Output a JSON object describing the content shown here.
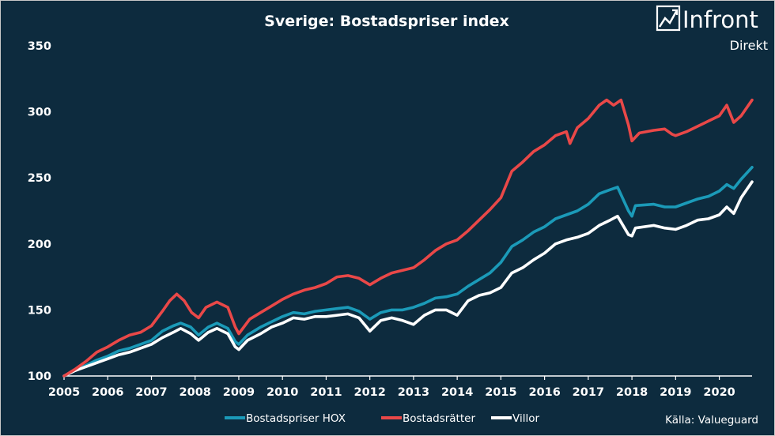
{
  "title": "Sverige: Bostadspriser index",
  "brand": {
    "name": "Infront",
    "sub": "Direkt",
    "icon": "chart-trend-icon"
  },
  "source": "Källa:  Valueguard",
  "colors": {
    "background": "#0d2b3e",
    "hox": "#1b9ab8",
    "br": "#e94848",
    "villor": "#ffffff"
  },
  "chart_data": {
    "type": "line",
    "title": "Sverige: Bostadspriser index",
    "xlabel": "",
    "ylabel": "",
    "xlim": [
      2005.0,
      2020.75
    ],
    "ylim": [
      100,
      350
    ],
    "x_ticks": [
      "2005",
      "2006",
      "2007",
      "2008",
      "2009",
      "2010",
      "2011",
      "2012",
      "2013",
      "2014",
      "2015",
      "2016",
      "2017",
      "2018",
      "2019",
      "2020"
    ],
    "y_ticks": [
      100,
      150,
      200,
      250,
      300,
      350
    ],
    "grid": false,
    "legend": "bottom",
    "series": [
      {
        "name": "Bostadspriser HOX",
        "color": "#1b9ab8",
        "points": [
          [
            2005.0,
            100
          ],
          [
            2005.25,
            104
          ],
          [
            2005.5,
            108
          ],
          [
            2005.75,
            112
          ],
          [
            2006.0,
            115
          ],
          [
            2006.25,
            119
          ],
          [
            2006.5,
            121
          ],
          [
            2006.75,
            124
          ],
          [
            2007.0,
            127
          ],
          [
            2007.25,
            134
          ],
          [
            2007.5,
            138
          ],
          [
            2007.67,
            140
          ],
          [
            2007.9,
            137
          ],
          [
            2008.08,
            131
          ],
          [
            2008.3,
            137
          ],
          [
            2008.5,
            140
          ],
          [
            2008.75,
            136
          ],
          [
            2008.92,
            126
          ],
          [
            2009.0,
            124
          ],
          [
            2009.2,
            131
          ],
          [
            2009.5,
            137
          ],
          [
            2009.75,
            141
          ],
          [
            2010.0,
            145
          ],
          [
            2010.25,
            148
          ],
          [
            2010.5,
            147
          ],
          [
            2010.75,
            149
          ],
          [
            2011.0,
            150
          ],
          [
            2011.25,
            151
          ],
          [
            2011.5,
            152
          ],
          [
            2011.75,
            149
          ],
          [
            2012.0,
            143
          ],
          [
            2012.25,
            148
          ],
          [
            2012.5,
            150
          ],
          [
            2012.75,
            150
          ],
          [
            2013.0,
            152
          ],
          [
            2013.25,
            155
          ],
          [
            2013.5,
            159
          ],
          [
            2013.75,
            160
          ],
          [
            2014.0,
            162
          ],
          [
            2014.25,
            168
          ],
          [
            2014.5,
            173
          ],
          [
            2014.75,
            178
          ],
          [
            2015.0,
            186
          ],
          [
            2015.25,
            198
          ],
          [
            2015.5,
            203
          ],
          [
            2015.75,
            209
          ],
          [
            2016.0,
            213
          ],
          [
            2016.25,
            219
          ],
          [
            2016.5,
            222
          ],
          [
            2016.75,
            225
          ],
          [
            2017.0,
            230
          ],
          [
            2017.25,
            238
          ],
          [
            2017.5,
            241
          ],
          [
            2017.67,
            243
          ],
          [
            2017.92,
            225
          ],
          [
            2018.0,
            221
          ],
          [
            2018.08,
            229
          ],
          [
            2018.5,
            230
          ],
          [
            2018.75,
            228
          ],
          [
            2019.0,
            228
          ],
          [
            2019.25,
            231
          ],
          [
            2019.5,
            234
          ],
          [
            2019.75,
            236
          ],
          [
            2020.0,
            240
          ],
          [
            2020.17,
            245
          ],
          [
            2020.33,
            242
          ],
          [
            2020.5,
            249
          ],
          [
            2020.75,
            258
          ]
        ]
      },
      {
        "name": "Bostadsrätter",
        "color": "#e94848",
        "points": [
          [
            2005.0,
            100
          ],
          [
            2005.25,
            105
          ],
          [
            2005.5,
            111
          ],
          [
            2005.75,
            118
          ],
          [
            2006.0,
            122
          ],
          [
            2006.25,
            127
          ],
          [
            2006.5,
            131
          ],
          [
            2006.75,
            133
          ],
          [
            2007.0,
            138
          ],
          [
            2007.25,
            149
          ],
          [
            2007.42,
            157
          ],
          [
            2007.58,
            162
          ],
          [
            2007.75,
            157
          ],
          [
            2007.92,
            148
          ],
          [
            2008.08,
            144
          ],
          [
            2008.25,
            152
          ],
          [
            2008.5,
            156
          ],
          [
            2008.75,
            152
          ],
          [
            2008.92,
            137
          ],
          [
            2009.0,
            132
          ],
          [
            2009.25,
            143
          ],
          [
            2009.5,
            148
          ],
          [
            2009.75,
            153
          ],
          [
            2010.0,
            158
          ],
          [
            2010.25,
            162
          ],
          [
            2010.5,
            165
          ],
          [
            2010.75,
            167
          ],
          [
            2011.0,
            170
          ],
          [
            2011.25,
            175
          ],
          [
            2011.5,
            176
          ],
          [
            2011.75,
            174
          ],
          [
            2012.0,
            169
          ],
          [
            2012.25,
            174
          ],
          [
            2012.5,
            178
          ],
          [
            2012.75,
            180
          ],
          [
            2013.0,
            182
          ],
          [
            2013.25,
            188
          ],
          [
            2013.5,
            195
          ],
          [
            2013.75,
            200
          ],
          [
            2014.0,
            203
          ],
          [
            2014.25,
            210
          ],
          [
            2014.5,
            218
          ],
          [
            2014.75,
            226
          ],
          [
            2015.0,
            235
          ],
          [
            2015.25,
            255
          ],
          [
            2015.5,
            262
          ],
          [
            2015.75,
            270
          ],
          [
            2016.0,
            275
          ],
          [
            2016.25,
            282
          ],
          [
            2016.5,
            285
          ],
          [
            2016.58,
            276
          ],
          [
            2016.75,
            288
          ],
          [
            2017.0,
            295
          ],
          [
            2017.25,
            305
          ],
          [
            2017.42,
            309
          ],
          [
            2017.58,
            305
          ],
          [
            2017.75,
            309
          ],
          [
            2017.92,
            290
          ],
          [
            2018.0,
            278
          ],
          [
            2018.17,
            284
          ],
          [
            2018.5,
            286
          ],
          [
            2018.75,
            287
          ],
          [
            2018.92,
            283
          ],
          [
            2019.0,
            282
          ],
          [
            2019.25,
            285
          ],
          [
            2019.5,
            289
          ],
          [
            2019.75,
            293
          ],
          [
            2020.0,
            297
          ],
          [
            2020.17,
            305
          ],
          [
            2020.33,
            292
          ],
          [
            2020.5,
            297
          ],
          [
            2020.75,
            309
          ]
        ]
      },
      {
        "name": "Villor",
        "color": "#ffffff",
        "points": [
          [
            2005.0,
            100
          ],
          [
            2005.25,
            104
          ],
          [
            2005.5,
            107
          ],
          [
            2005.75,
            110
          ],
          [
            2006.0,
            113
          ],
          [
            2006.25,
            116
          ],
          [
            2006.5,
            118
          ],
          [
            2006.75,
            121
          ],
          [
            2007.0,
            124
          ],
          [
            2007.25,
            129
          ],
          [
            2007.5,
            133
          ],
          [
            2007.67,
            136
          ],
          [
            2007.9,
            132
          ],
          [
            2008.08,
            127
          ],
          [
            2008.3,
            133
          ],
          [
            2008.5,
            136
          ],
          [
            2008.75,
            132
          ],
          [
            2008.92,
            122
          ],
          [
            2009.0,
            120
          ],
          [
            2009.2,
            127
          ],
          [
            2009.5,
            132
          ],
          [
            2009.75,
            137
          ],
          [
            2010.0,
            140
          ],
          [
            2010.25,
            144
          ],
          [
            2010.5,
            143
          ],
          [
            2010.75,
            145
          ],
          [
            2011.0,
            145
          ],
          [
            2011.25,
            146
          ],
          [
            2011.5,
            147
          ],
          [
            2011.75,
            144
          ],
          [
            2012.0,
            134
          ],
          [
            2012.25,
            142
          ],
          [
            2012.5,
            144
          ],
          [
            2012.75,
            142
          ],
          [
            2013.0,
            139
          ],
          [
            2013.25,
            146
          ],
          [
            2013.5,
            150
          ],
          [
            2013.75,
            150
          ],
          [
            2014.0,
            146
          ],
          [
            2014.25,
            157
          ],
          [
            2014.5,
            161
          ],
          [
            2014.75,
            163
          ],
          [
            2015.0,
            167
          ],
          [
            2015.25,
            178
          ],
          [
            2015.5,
            182
          ],
          [
            2015.75,
            188
          ],
          [
            2016.0,
            193
          ],
          [
            2016.25,
            200
          ],
          [
            2016.5,
            203
          ],
          [
            2016.75,
            205
          ],
          [
            2017.0,
            208
          ],
          [
            2017.25,
            214
          ],
          [
            2017.5,
            218
          ],
          [
            2017.67,
            221
          ],
          [
            2017.92,
            207
          ],
          [
            2018.0,
            206
          ],
          [
            2018.08,
            212
          ],
          [
            2018.5,
            214
          ],
          [
            2018.75,
            212
          ],
          [
            2019.0,
            211
          ],
          [
            2019.25,
            214
          ],
          [
            2019.5,
            218
          ],
          [
            2019.75,
            219
          ],
          [
            2020.0,
            222
          ],
          [
            2020.17,
            228
          ],
          [
            2020.33,
            223
          ],
          [
            2020.5,
            235
          ],
          [
            2020.75,
            247
          ]
        ]
      }
    ]
  }
}
